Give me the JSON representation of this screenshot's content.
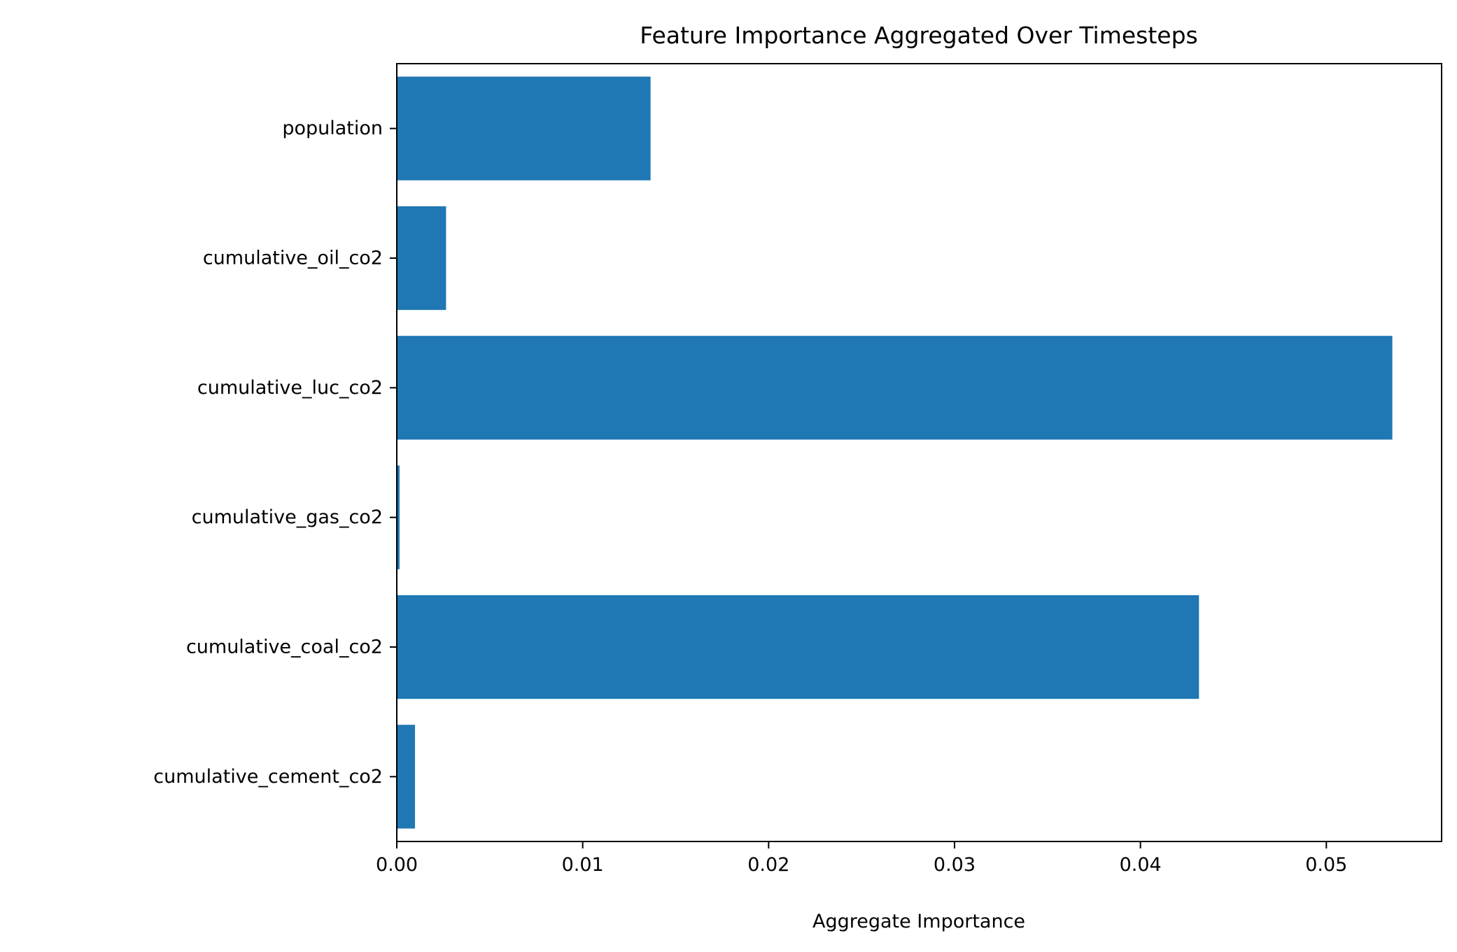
{
  "chart_data": {
    "type": "bar",
    "orientation": "horizontal",
    "title": "Feature Importance Aggregated Over Timesteps",
    "xlabel": "Aggregate Importance",
    "ylabel": "",
    "categories": [
      "cumulative_cement_co2",
      "cumulative_coal_co2",
      "cumulative_gas_co2",
      "cumulative_luc_co2",
      "cumulative_oil_co2",
      "population"
    ],
    "values": [
      0.00098,
      0.04315,
      0.00015,
      0.05355,
      0.00265,
      0.01365
    ],
    "xlim": [
      0.0,
      0.0562
    ],
    "xticks": [
      0.0,
      0.01,
      0.02,
      0.03,
      0.04,
      0.05
    ],
    "xtick_labels": [
      "0.00",
      "0.01",
      "0.02",
      "0.03",
      "0.04",
      "0.05"
    ],
    "bar_color": "#1f77b4",
    "grid": false,
    "legend": false
  }
}
